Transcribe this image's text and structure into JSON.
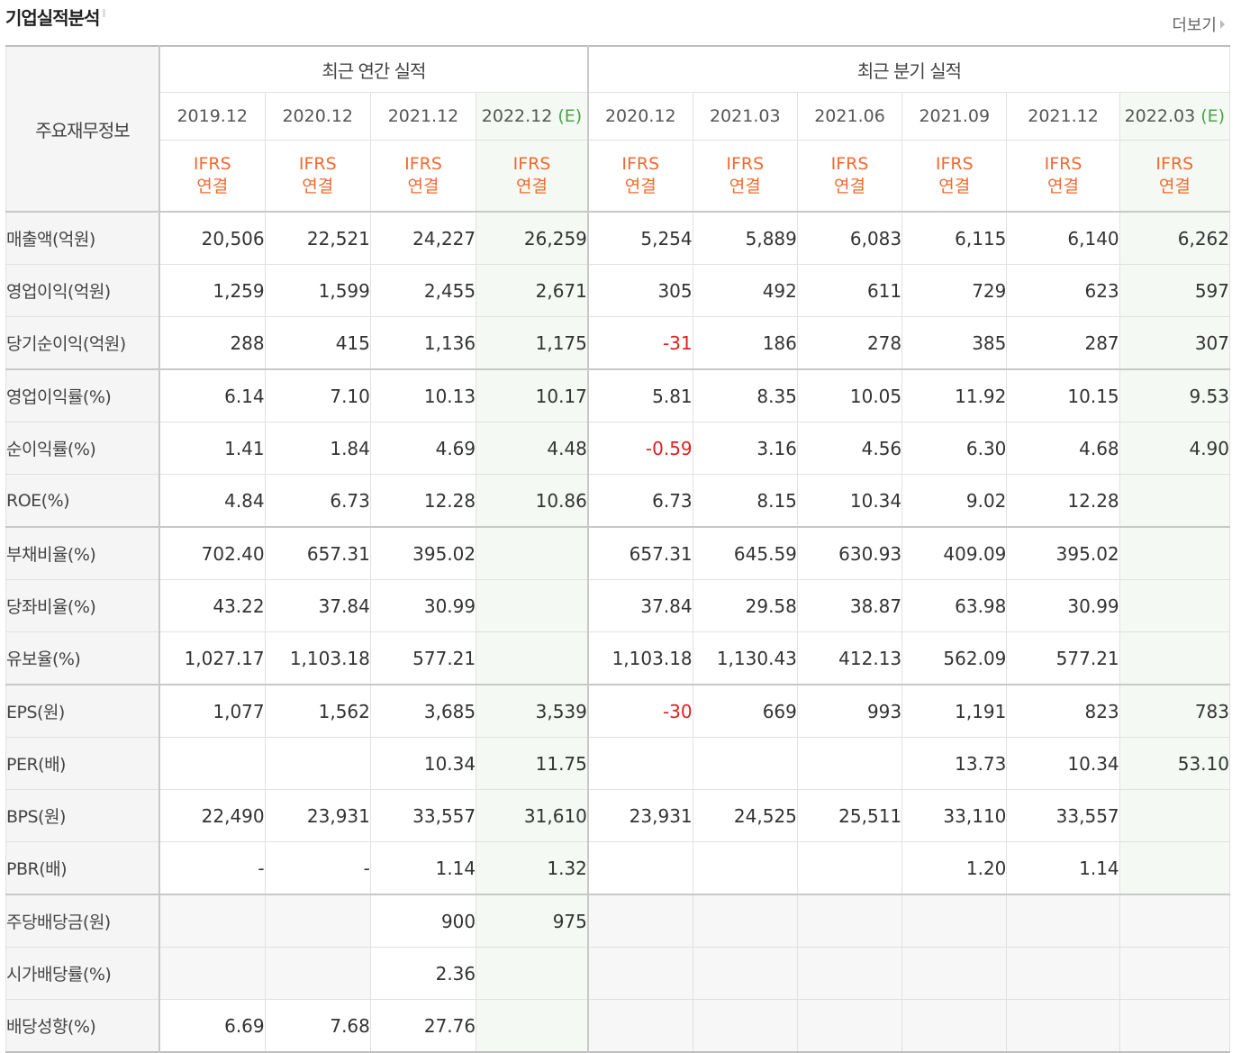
{
  "header": {
    "title": "기업실적분석",
    "more": "더보기"
  },
  "table": {
    "row_header": "주요재무정보",
    "groups": {
      "annual": "최근 연간 실적",
      "quarter": "최근 분기 실적"
    },
    "periods": [
      "2019.12",
      "2020.12",
      "2021.12",
      "2022.12",
      "2020.12",
      "2021.03",
      "2021.06",
      "2021.09",
      "2021.12",
      "2022.03"
    ],
    "estimate_mark": "(E)",
    "ifrs_line1": "IFRS",
    "ifrs_line2": "연결",
    "rows": [
      {
        "label": "매출액(억원)",
        "values": [
          "20,506",
          "22,521",
          "24,227",
          "26,259",
          "5,254",
          "5,889",
          "6,083",
          "6,115",
          "6,140",
          "6,262"
        ]
      },
      {
        "label": "영업이익(억원)",
        "values": [
          "1,259",
          "1,599",
          "2,455",
          "2,671",
          "305",
          "492",
          "611",
          "729",
          "623",
          "597"
        ]
      },
      {
        "label": "당기순이익(억원)",
        "values": [
          "288",
          "415",
          "1,136",
          "1,175",
          "-31",
          "186",
          "278",
          "385",
          "287",
          "307"
        ]
      },
      {
        "label": "영업이익률(%)",
        "values": [
          "6.14",
          "7.10",
          "10.13",
          "10.17",
          "5.81",
          "8.35",
          "10.05",
          "11.92",
          "10.15",
          "9.53"
        ]
      },
      {
        "label": "순이익률(%)",
        "values": [
          "1.41",
          "1.84",
          "4.69",
          "4.48",
          "-0.59",
          "3.16",
          "4.56",
          "6.30",
          "4.68",
          "4.90"
        ]
      },
      {
        "label": "ROE(%)",
        "values": [
          "4.84",
          "6.73",
          "12.28",
          "10.86",
          "6.73",
          "8.15",
          "10.34",
          "9.02",
          "12.28",
          ""
        ]
      },
      {
        "label": "부채비율(%)",
        "values": [
          "702.40",
          "657.31",
          "395.02",
          "",
          "657.31",
          "645.59",
          "630.93",
          "409.09",
          "395.02",
          ""
        ]
      },
      {
        "label": "당좌비율(%)",
        "values": [
          "43.22",
          "37.84",
          "30.99",
          "",
          "37.84",
          "29.58",
          "38.87",
          "63.98",
          "30.99",
          ""
        ]
      },
      {
        "label": "유보율(%)",
        "values": [
          "1,027.17",
          "1,103.18",
          "577.21",
          "",
          "1,103.18",
          "1,130.43",
          "412.13",
          "562.09",
          "577.21",
          ""
        ]
      },
      {
        "label": "EPS(원)",
        "values": [
          "1,077",
          "1,562",
          "3,685",
          "3,539",
          "-30",
          "669",
          "993",
          "1,191",
          "823",
          "783"
        ]
      },
      {
        "label": "PER(배)",
        "values": [
          "",
          "",
          "10.34",
          "11.75",
          "",
          "",
          "",
          "13.73",
          "10.34",
          "53.10"
        ]
      },
      {
        "label": "BPS(원)",
        "values": [
          "22,490",
          "23,931",
          "33,557",
          "31,610",
          "23,931",
          "24,525",
          "25,511",
          "33,110",
          "33,557",
          ""
        ]
      },
      {
        "label": "PBR(배)",
        "values": [
          "-",
          "-",
          "1.14",
          "1.32",
          "",
          "",
          "",
          "1.20",
          "1.14",
          ""
        ]
      },
      {
        "label": "주당배당금(원)",
        "values": [
          "",
          "",
          "900",
          "975",
          "",
          "",
          "",
          "",
          "",
          ""
        ]
      },
      {
        "label": "시가배당률(%)",
        "values": [
          "",
          "",
          "2.36",
          "",
          "",
          "",
          "",
          "",
          "",
          ""
        ]
      },
      {
        "label": "배당성향(%)",
        "values": [
          "6.69",
          "7.68",
          "27.76",
          "",
          "",
          "",
          "",
          "",
          "",
          ""
        ]
      }
    ]
  }
}
